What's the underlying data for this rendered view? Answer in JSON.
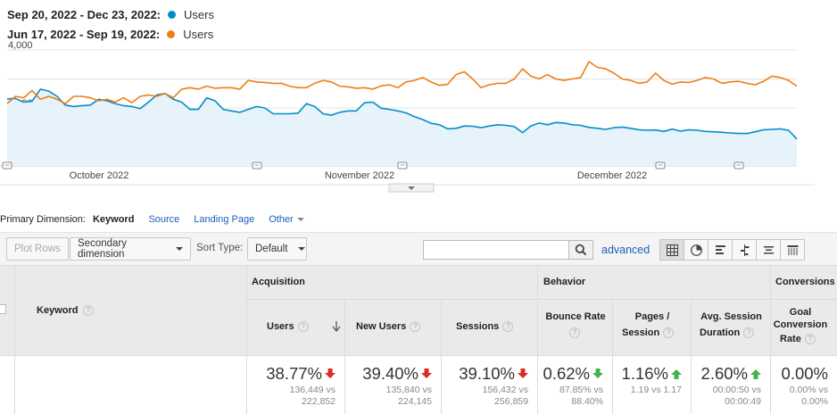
{
  "legend": {
    "current": {
      "range": "Sep 20, 2022 - Dec 23, 2022:",
      "metric": "Users",
      "color": "#058dc7"
    },
    "previous": {
      "range": "Jun 17, 2022 - Sep 19, 2022:",
      "metric": "Users",
      "color": "#ed7e17"
    }
  },
  "chart_data": {
    "type": "line",
    "title": "",
    "ylim": [
      0,
      4000
    ],
    "y_ticks": [
      "4,000",
      "2,000"
    ],
    "x_labels": [
      "October 2022",
      "November 2022",
      "December 2022"
    ],
    "grid": true,
    "series": [
      {
        "name": "Users",
        "period": "Sep 20, 2022 - Dec 23, 2022",
        "color": "#058dc7",
        "fill": true,
        "values": [
          2310,
          2330,
          2200,
          2230,
          2650,
          2580,
          2400,
          2100,
          2050,
          2080,
          2100,
          2300,
          2250,
          2150,
          2080,
          2050,
          1980,
          2200,
          2450,
          2500,
          2300,
          2200,
          1950,
          1950,
          2350,
          2250,
          1950,
          1900,
          1850,
          1950,
          2050,
          2000,
          1800,
          1800,
          1800,
          1820,
          2150,
          2050,
          1800,
          1750,
          1850,
          1900,
          1900,
          2180,
          2200,
          1990,
          1950,
          1900,
          1830,
          1700,
          1600,
          1470,
          1420,
          1280,
          1300,
          1380,
          1370,
          1320,
          1380,
          1420,
          1400,
          1360,
          1150,
          1380,
          1480,
          1420,
          1500,
          1480,
          1420,
          1400,
          1330,
          1300,
          1260,
          1320,
          1340,
          1300,
          1250,
          1230,
          1240,
          1190,
          1270,
          1200,
          1250,
          1230,
          1190,
          1180,
          1160,
          1140,
          1120,
          1120,
          1180,
          1250,
          1260,
          1280,
          1230,
          930
        ]
      },
      {
        "name": "Users",
        "period": "Jun 17, 2022 - Sep 19, 2022",
        "color": "#ed7e17",
        "fill": false,
        "values": [
          2150,
          2400,
          2350,
          2600,
          2300,
          2400,
          2300,
          2150,
          2400,
          2400,
          2350,
          2250,
          2300,
          2200,
          2350,
          2180,
          2400,
          2450,
          2400,
          2500,
          2350,
          2650,
          2700,
          2650,
          2750,
          2680,
          2700,
          2700,
          2650,
          2950,
          2900,
          2880,
          2850,
          2850,
          2750,
          2700,
          2700,
          2850,
          2950,
          2900,
          2750,
          2730,
          2680,
          2700,
          2650,
          2760,
          2800,
          2700,
          2900,
          2950,
          3050,
          2900,
          2780,
          2820,
          3150,
          3250,
          3000,
          2700,
          2800,
          2850,
          2850,
          3000,
          3350,
          3100,
          3000,
          3150,
          3000,
          2950,
          3000,
          3050,
          3600,
          3400,
          3350,
          3200,
          3000,
          2950,
          2850,
          2900,
          3200,
          2950,
          2820,
          2900,
          2880,
          2950,
          3050,
          3000,
          2850,
          2900,
          2920,
          2850,
          2800,
          2920,
          3100,
          3050,
          2950,
          2750
        ]
      }
    ]
  },
  "dimension": {
    "label": "Primary Dimension:",
    "active": "Keyword",
    "options": [
      "Source",
      "Landing Page"
    ],
    "other": "Other"
  },
  "toolbar": {
    "plot_rows": "Plot Rows",
    "secondary_dimension": "Secondary dimension",
    "sort_type_label": "Sort Type:",
    "sort_type_value": "Default",
    "search_placeholder": "",
    "advanced": "advanced"
  },
  "table": {
    "keyword_header": "Keyword",
    "groups": {
      "acquisition": "Acquisition",
      "behavior": "Behavior",
      "conversions": "Conversions"
    },
    "columns": [
      {
        "label": "Users",
        "pct": "38.77%",
        "dir": "down",
        "good": false,
        "cmp1": "136,449 vs",
        "cmp2": "222,852"
      },
      {
        "label": "New Users",
        "pct": "39.40%",
        "dir": "down",
        "good": false,
        "cmp1": "135,840 vs",
        "cmp2": "224,145"
      },
      {
        "label": "Sessions",
        "pct": "39.10%",
        "dir": "down",
        "good": false,
        "cmp1": "156,432 vs",
        "cmp2": "256,859"
      },
      {
        "label": "Bounce Rate",
        "pct": "0.62%",
        "dir": "down",
        "good": true,
        "cmp1": "87.85% vs",
        "cmp2": "88.40%"
      },
      {
        "label1": "Pages /",
        "label2": "Session",
        "pct": "1.16%",
        "dir": "up",
        "good": true,
        "cmp1": "1.19 vs 1.17",
        "cmp2": ""
      },
      {
        "label1": "Avg. Session",
        "label2": "Duration",
        "pct": "2.60%",
        "dir": "up",
        "good": true,
        "cmp1": "00:00:50 vs",
        "cmp2": "00:00:49"
      },
      {
        "label1": "Goal",
        "label2": "Conversion",
        "label3": "Rate",
        "pct": "0.00%",
        "dir": "none",
        "good": true,
        "cmp1": "0.00% vs",
        "cmp2": "0.00%"
      }
    ]
  }
}
